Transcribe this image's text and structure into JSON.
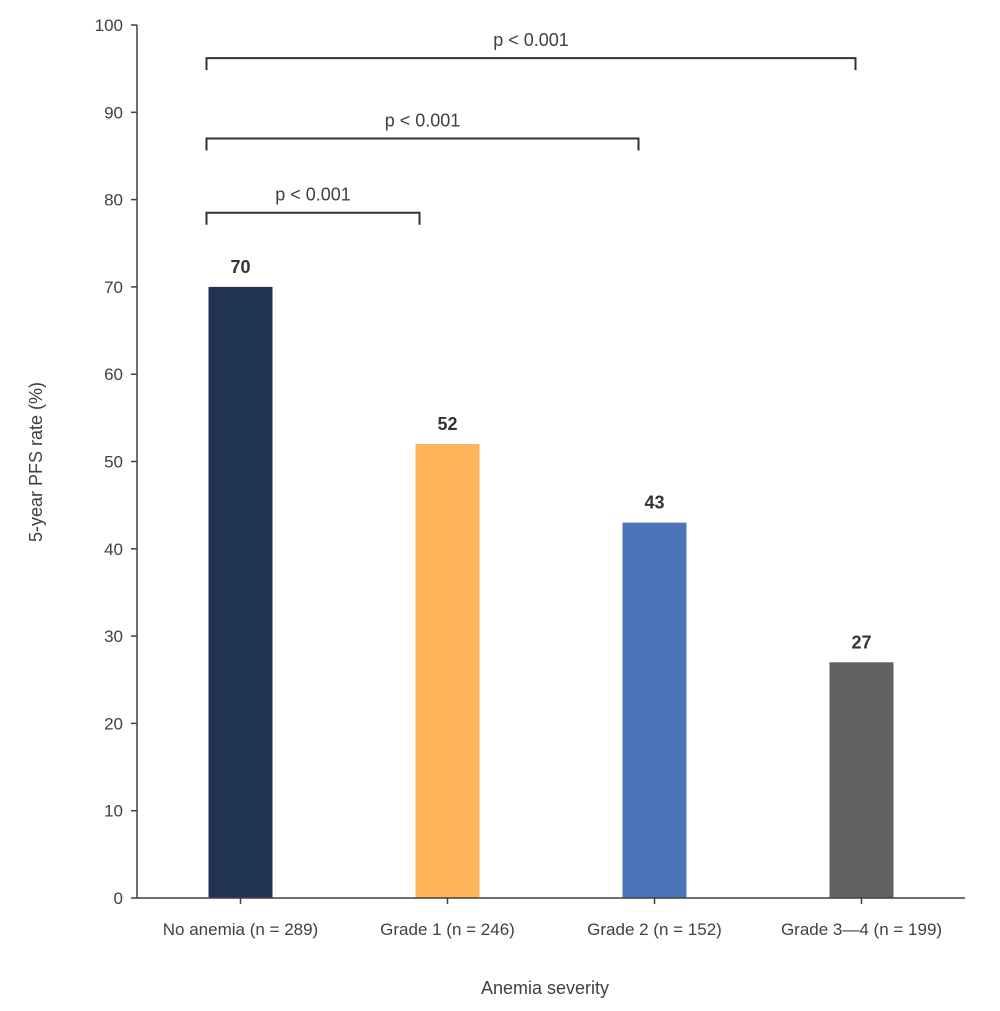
{
  "chart_data": {
    "type": "bar",
    "categories": [
      "No anemia (n = 289)",
      "Grade 1 (n = 246)",
      "Grade 2 (n = 152)",
      "Grade 3—4 (n = 199)"
    ],
    "values": [
      70,
      52,
      43,
      27
    ],
    "value_labels": [
      "70",
      "52",
      "43",
      "27"
    ],
    "colors": [
      "#203350",
      "#FDB45A",
      "#4C74BA",
      "#626262"
    ],
    "xlabel": "Anemia severity",
    "ylabel": "5-year PFS rate (%)",
    "ylim": [
      0,
      100
    ],
    "yticks": [
      0,
      10,
      20,
      30,
      40,
      50,
      60,
      70,
      80,
      90,
      100
    ],
    "grid": false,
    "annotations": [
      {
        "from": 0,
        "to": 1,
        "level": 78.5,
        "text": "p < 0.001"
      },
      {
        "from": 0,
        "to": 2,
        "level": 87,
        "text": "p < 0.001"
      },
      {
        "from": 0,
        "to": 3,
        "level": 96.2,
        "text": "p < 0.001"
      }
    ]
  }
}
